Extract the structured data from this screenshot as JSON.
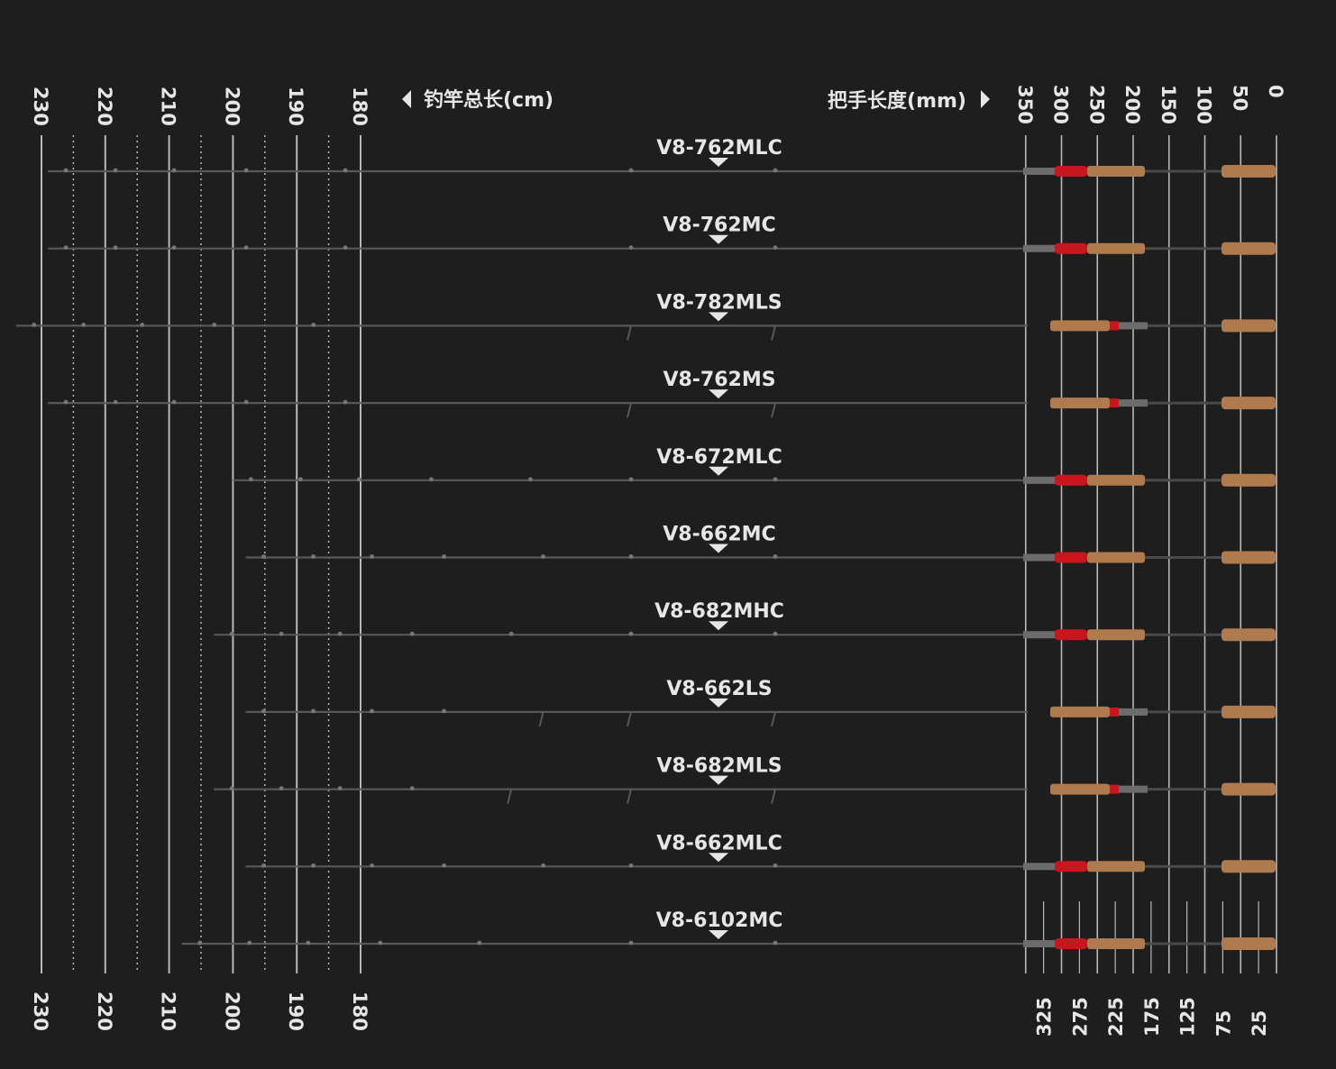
{
  "total_length_axis": {
    "title": "钓竿总长(cm)",
    "major_ticks": [
      "230",
      "220",
      "210",
      "200",
      "190",
      "180"
    ],
    "minor_ticks": [
      225,
      215,
      205,
      195,
      185
    ]
  },
  "handle_length_axis": {
    "title": "把手长度(mm)",
    "top_ticks": [
      "350",
      "300",
      "250",
      "200",
      "150",
      "100",
      "50",
      "0"
    ],
    "bottom_ticks": [
      "325",
      "275",
      "225",
      "175",
      "125",
      "75",
      "25"
    ]
  },
  "colors": {
    "background": "#1e1e1e",
    "grid": "#b8b8b8",
    "rod_blank": "#585858",
    "cork": "#b07a4f",
    "reel_seat_red": "#c8161e",
    "text": "#e6e6e6"
  },
  "rods": [
    {
      "model": "V8-762MLC",
      "total_cm": 229,
      "handle": "casting"
    },
    {
      "model": "V8-762MC",
      "total_cm": 229,
      "handle": "casting"
    },
    {
      "model": "V8-782MLS",
      "total_cm": 234,
      "handle": "spinning"
    },
    {
      "model": "V8-762MS",
      "total_cm": 229,
      "handle": "spinning"
    },
    {
      "model": "V8-672MLC",
      "total_cm": 200,
      "handle": "casting"
    },
    {
      "model": "V8-662MC",
      "total_cm": 198,
      "handle": "casting"
    },
    {
      "model": "V8-682MHC",
      "total_cm": 203,
      "handle": "casting"
    },
    {
      "model": "V8-662LS",
      "total_cm": 198,
      "handle": "spinning"
    },
    {
      "model": "V8-682MLS",
      "total_cm": 203,
      "handle": "spinning"
    },
    {
      "model": "V8-662MLC",
      "total_cm": 198,
      "handle": "casting"
    },
    {
      "model": "V8-6102MC",
      "total_cm": 208,
      "handle": "casting"
    }
  ]
}
